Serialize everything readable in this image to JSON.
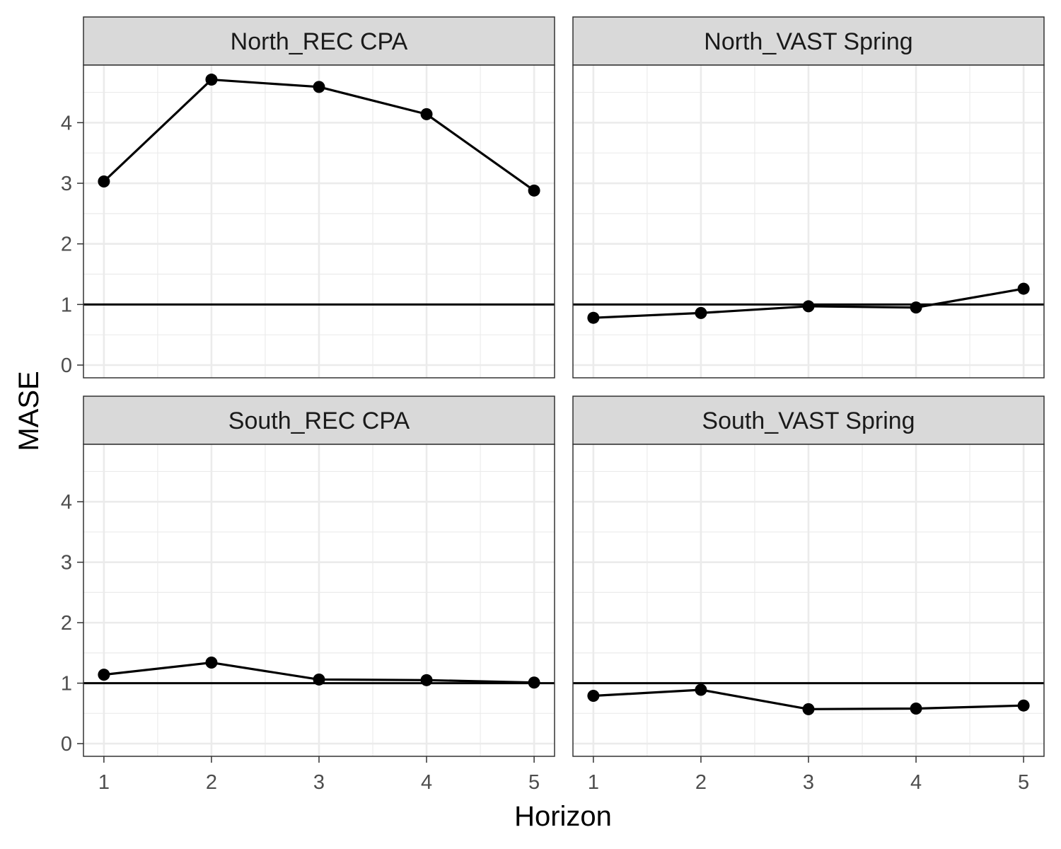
{
  "chart_data": {
    "type": "line",
    "xlabel": "Horizon",
    "ylabel": "MASE",
    "x": [
      1,
      2,
      3,
      4,
      5
    ],
    "x_ticks": [
      "1",
      "2",
      "3",
      "4",
      "5"
    ],
    "y_ticks": [
      "0",
      "1",
      "2",
      "3",
      "4"
    ],
    "xlim": [
      0.81,
      5.19
    ],
    "ylim": [
      -0.21,
      4.95
    ],
    "reference_line": 1,
    "facets": [
      {
        "title": "North_REC CPA",
        "values": [
          3.03,
          4.71,
          4.59,
          4.14,
          2.88
        ]
      },
      {
        "title": "North_VAST Spring",
        "values": [
          0.78,
          0.86,
          0.97,
          0.95,
          1.26
        ]
      },
      {
        "title": "South_REC CPA",
        "values": [
          1.14,
          1.34,
          1.06,
          1.05,
          1.01
        ]
      },
      {
        "title": "South_VAST Spring",
        "values": [
          0.79,
          0.89,
          0.57,
          0.58,
          0.63
        ]
      }
    ]
  }
}
